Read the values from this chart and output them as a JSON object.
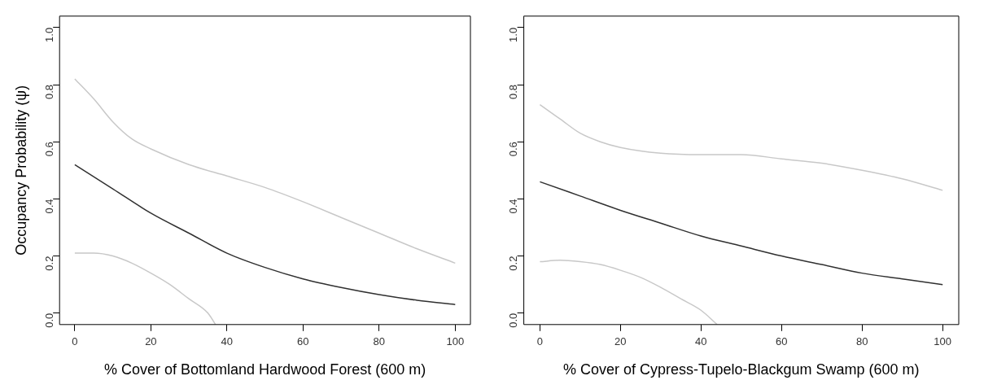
{
  "chart_data": [
    {
      "type": "line",
      "xlabel": "% Cover of Bottomland Hardwood Forest (600 m)",
      "ylabel": "Occupancy Probability (ψ)",
      "xlim": [
        -4,
        104
      ],
      "ylim": [
        -0.04,
        1.04
      ],
      "xticks": [
        0,
        20,
        40,
        60,
        80,
        100
      ],
      "yticks": [
        {
          "value": 0,
          "label": "0.0"
        },
        {
          "value": 0.2,
          "label": "0.2"
        },
        {
          "value": 0.4,
          "label": "0.4"
        },
        {
          "value": 0.6,
          "label": "0.6"
        },
        {
          "value": 0.8,
          "label": "0.8"
        },
        {
          "value": 1,
          "label": "1.0"
        }
      ],
      "grid": false,
      "legend": false,
      "marker": "none",
      "series": [
        {
          "color": "#c8c8c8",
          "x": [
            0,
            5,
            10,
            15,
            20,
            25,
            30,
            35,
            37
          ],
          "values": [
            0.21,
            0.21,
            0.2,
            0.175,
            0.14,
            0.1,
            0.05,
            0,
            -0.04
          ]
        },
        {
          "color": "#c8c8c8",
          "x": [
            0,
            5,
            10,
            15,
            20,
            30,
            40,
            50,
            60,
            70,
            80,
            90,
            100
          ],
          "values": [
            0.82,
            0.75,
            0.67,
            0.61,
            0.575,
            0.52,
            0.48,
            0.44,
            0.39,
            0.335,
            0.28,
            0.225,
            0.175
          ]
        },
        {
          "color": "#303030",
          "x": [
            0,
            10,
            20,
            30,
            40,
            50,
            60,
            70,
            80,
            90,
            100
          ],
          "values": [
            0.52,
            0.435,
            0.35,
            0.28,
            0.21,
            0.16,
            0.12,
            0.09,
            0.065,
            0.045,
            0.03
          ]
        }
      ]
    },
    {
      "type": "line",
      "xlabel": "% Cover of Cypress-Tupelo-Blackgum Swamp (600 m)",
      "xlim": [
        -4,
        104
      ],
      "ylim": [
        -0.04,
        1.04
      ],
      "xticks": [
        0,
        20,
        40,
        60,
        80,
        100
      ],
      "yticks": [
        {
          "value": 0,
          "label": "0.0"
        },
        {
          "value": 0.2,
          "label": "0.2"
        },
        {
          "value": 0.4,
          "label": "0.4"
        },
        {
          "value": 0.6,
          "label": "0.6"
        },
        {
          "value": 0.8,
          "label": "0.8"
        },
        {
          "value": 1,
          "label": "1.0"
        }
      ],
      "grid": false,
      "legend": false,
      "marker": "none",
      "series": [
        {
          "color": "#c8c8c8",
          "x": [
            0,
            5,
            10,
            15,
            20,
            25,
            30,
            35,
            40,
            44
          ],
          "values": [
            0.18,
            0.185,
            0.18,
            0.17,
            0.15,
            0.125,
            0.09,
            0.05,
            0.01,
            -0.04
          ]
        },
        {
          "color": "#c8c8c8",
          "x": [
            0,
            5,
            10,
            15,
            20,
            30,
            40,
            50,
            60,
            70,
            80,
            90,
            100
          ],
          "values": [
            0.73,
            0.68,
            0.63,
            0.6,
            0.58,
            0.56,
            0.555,
            0.555,
            0.54,
            0.525,
            0.5,
            0.47,
            0.43
          ]
        },
        {
          "color": "#303030",
          "x": [
            0,
            10,
            20,
            30,
            40,
            50,
            60,
            70,
            80,
            90,
            100
          ],
          "values": [
            0.46,
            0.41,
            0.36,
            0.315,
            0.27,
            0.235,
            0.2,
            0.17,
            0.14,
            0.12,
            0.1
          ]
        }
      ]
    }
  ]
}
